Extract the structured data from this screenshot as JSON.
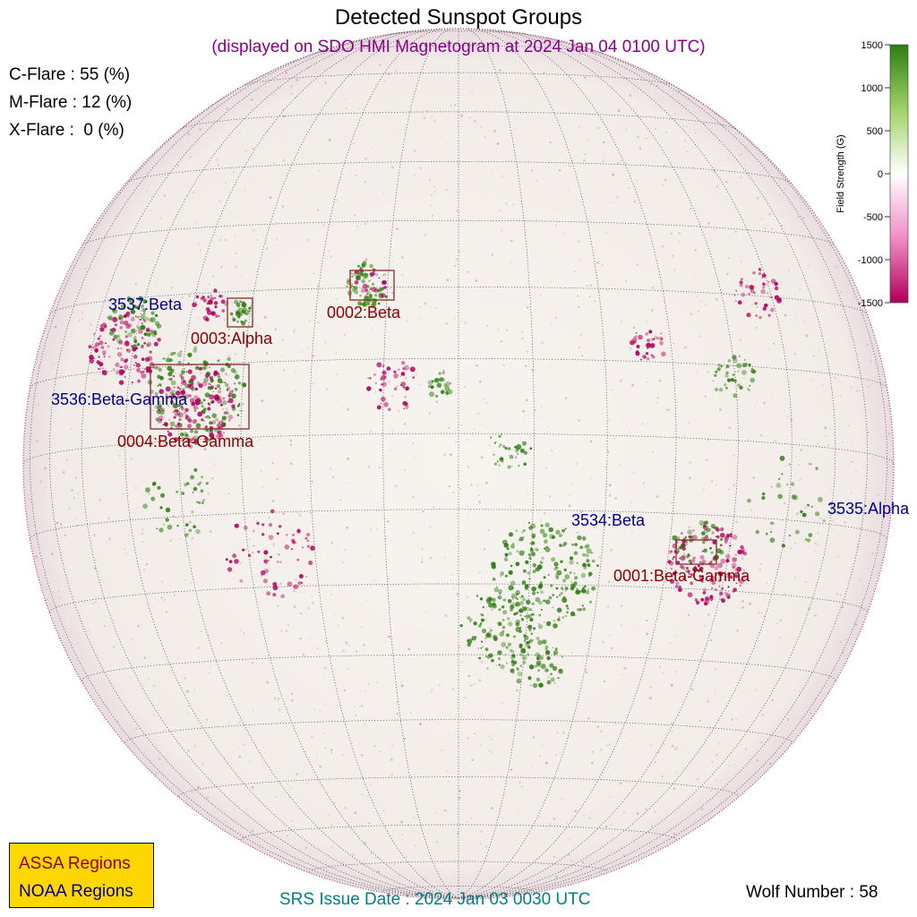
{
  "header": {
    "title": "Detected Sunspot Groups",
    "subtitle": "(displayed on SDO HMI Magnetogram at 2024 Jan 04 0100 UTC)"
  },
  "flare_probabilities": {
    "c_flare": "C-Flare : 55 (%)",
    "m_flare": "M-Flare : 12 (%)",
    "x_flare": "X-Flare :  0 (%)"
  },
  "colorbar": {
    "label": "Field Strength (G)",
    "ticks": [
      "1500",
      "1000",
      "500",
      "0",
      "-500",
      "-1000",
      "-1500"
    ],
    "colors": {
      "positive": "#2e7d12",
      "zero": "#ffffff",
      "negative": "#b0005a"
    }
  },
  "regions": {
    "noaa": [
      {
        "label": "3537:Beta"
      },
      {
        "label": "3536:Beta-Gamma"
      },
      {
        "label": "3534:Beta"
      },
      {
        "label": "3535:Alpha"
      }
    ],
    "assa": [
      {
        "label": "0002:Beta"
      },
      {
        "label": "0003:Alpha"
      },
      {
        "label": "0004:Beta-Gamma"
      },
      {
        "label": "0001:Beta-Gamma"
      }
    ]
  },
  "legend": {
    "assa": "ASSA Regions",
    "noaa": "NOAA Regions",
    "colors": {
      "assa": "#8b0000",
      "noaa": "#00008b",
      "background": "#ffd700"
    }
  },
  "footer": {
    "srs_issue": "SRS Issue Date : 2024 Jan 03 0030 UTC",
    "wolf_number": "Wolf Number : 58"
  }
}
